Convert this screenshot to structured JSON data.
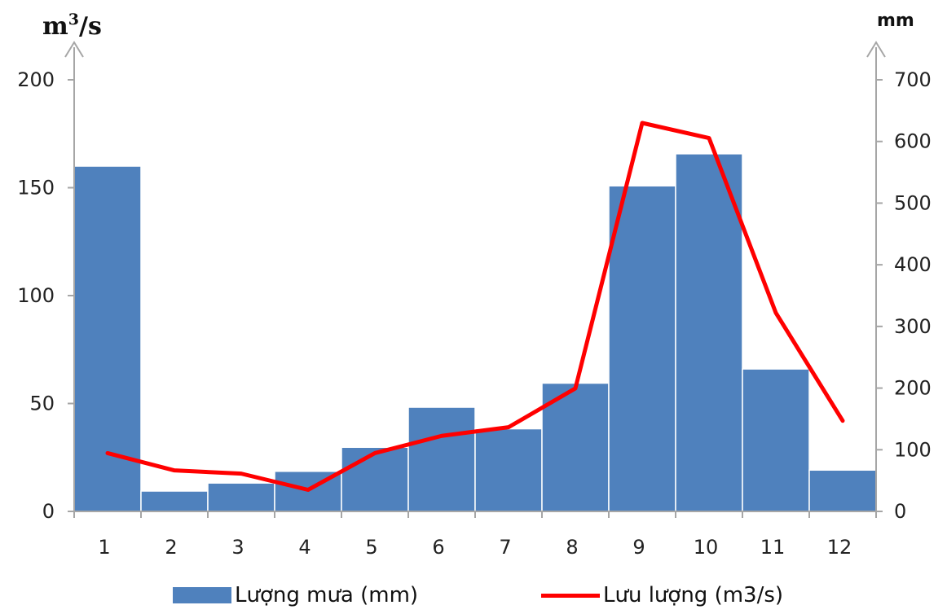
{
  "chart_data": {
    "type": "bar+line",
    "categories": [
      "1",
      "2",
      "3",
      "4",
      "5",
      "6",
      "7",
      "8",
      "9",
      "10",
      "11",
      "12"
    ],
    "series": [
      {
        "name": "Lượng mưa (mm)",
        "type": "bar",
        "axis": "right",
        "color": "#4F81BD",
        "values": [
          560,
          33,
          46,
          65,
          104,
          169,
          134,
          208,
          528,
          580,
          231,
          67
        ]
      },
      {
        "name": "Lưu lượng (m3/s)",
        "type": "line",
        "axis": "left",
        "color": "#FF0000",
        "values": [
          27,
          19,
          17.5,
          10,
          27,
          35,
          39,
          57,
          180,
          173,
          92,
          42
        ]
      }
    ],
    "left_axis": {
      "unit_base": "m",
      "unit_sup": "3",
      "unit_tail": "/s",
      "ylim": [
        0,
        200
      ],
      "ticks": [
        0,
        50,
        100,
        150,
        200
      ]
    },
    "right_axis": {
      "unit": "mm",
      "ylim": [
        0,
        700
      ],
      "ticks": [
        0,
        100,
        200,
        300,
        400,
        500,
        600,
        700
      ]
    },
    "grid": false,
    "legend_position": "bottom"
  }
}
